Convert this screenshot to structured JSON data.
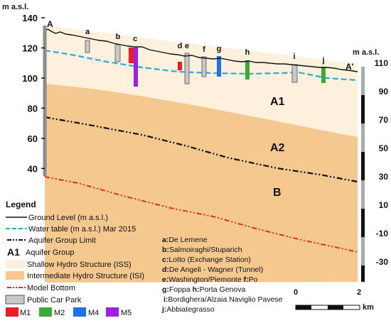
{
  "left_axis": {
    "unit": "m a.s.l.",
    "ticks": [
      140,
      120,
      100,
      80,
      60,
      40
    ]
  },
  "right_axis": {
    "unit": "m a.s.l.",
    "ticks": [
      110,
      90,
      70,
      50,
      30,
      10,
      -10,
      -30
    ]
  },
  "section_ends": {
    "start": "A",
    "end": "A'"
  },
  "well_labels": [
    "a",
    "b",
    "c",
    "d",
    "e",
    "f",
    "g",
    "h",
    "i",
    "j"
  ],
  "zone_labels": {
    "a1": "A1",
    "a2": "A2",
    "b": "B"
  },
  "legend": {
    "title": "Legend",
    "ground_level": "Ground Level (m a.s.l.)",
    "water_table": "Water table (m a.s.l.) Mar 2015",
    "aquifer_limit": "Aquifer Group Limit",
    "aquifer_group_code": "A1",
    "aquifer_group": "Aquifer Group",
    "iss": "Shallow Hydro Structure (ISS)",
    "isi": "Intermediate Hydro Structure (ISI)",
    "model_bottom": "Model Bottom",
    "car_park": "Public Car Park",
    "m1": "M1",
    "m2": "M2",
    "m4": "M4",
    "m5": "M5"
  },
  "sites": {
    "a": "De Lemene",
    "b": "Salmoiraghi/Stuparich",
    "c": "Lotto (Exchange Station)",
    "d": "De Angeli - Wagner (Tunnel)",
    "e": "Washington/Piemonte",
    "f": "Po",
    "g": "Foppa",
    "h": "Porta Genova",
    "i": "Bordighera/Alzaia Naviglio Pavese",
    "j": "Abbiategrasso"
  },
  "scale_bar": {
    "start": "0",
    "end": "2",
    "unit": "km"
  },
  "colors": {
    "iss": "#fdf0dc",
    "isi": "#f5c890",
    "water_table": "#29abe2",
    "model_bottom": "#e52b1a",
    "car_park": "#c8c8c8",
    "m1": "#ee1c25",
    "m2": "#3aa935",
    "m4": "#1e73e8",
    "m5": "#a020e0"
  }
}
